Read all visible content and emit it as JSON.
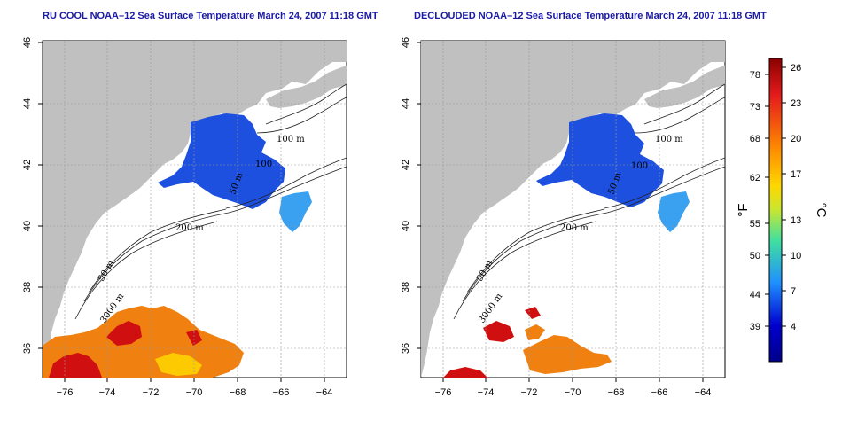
{
  "left_panel": {
    "title": "RU COOL NOAA–12 Sea Surface Temperature March 24, 2007 11:18 GMT",
    "contour_labels": [
      "100 m",
      "100",
      "50 m",
      "200 m",
      "50 m",
      "3000 m"
    ]
  },
  "right_panel": {
    "title": "DECLOUDED NOAA–12 Sea Surface Temperature March 24, 2007 11:18 GMT",
    "contour_labels": [
      "100 m",
      "100",
      "50 m",
      "200 m",
      "50 m",
      "3000 m"
    ]
  },
  "axes": {
    "x_ticks": [
      "−76",
      "−74",
      "−72",
      "−70",
      "−68",
      "−66",
      "−64"
    ],
    "y_ticks": [
      "46",
      "44",
      "42",
      "40",
      "38",
      "36"
    ]
  },
  "colorbar": {
    "fahrenheit_ticks": [
      "78",
      "73",
      "68",
      "62",
      "55",
      "50",
      "44",
      "39"
    ],
    "celsius_ticks": [
      "26",
      "23",
      "20",
      "17",
      "13",
      "10",
      "7",
      "4"
    ],
    "fahrenheit_unit": "°F",
    "celsius_unit": "°C",
    "gradient_colors": [
      "#8b0000",
      "#e41a1c",
      "#ff8c00",
      "#ffd700",
      "#c8e632",
      "#40e0a0",
      "#1e90ff",
      "#0000cd",
      "#00008b"
    ]
  },
  "colors": {
    "land": "#c0c0c0",
    "title": "#1a1aa8",
    "cold_water": "#1e50e0",
    "warm_water": "#f08010",
    "hot_water": "#d01010"
  }
}
